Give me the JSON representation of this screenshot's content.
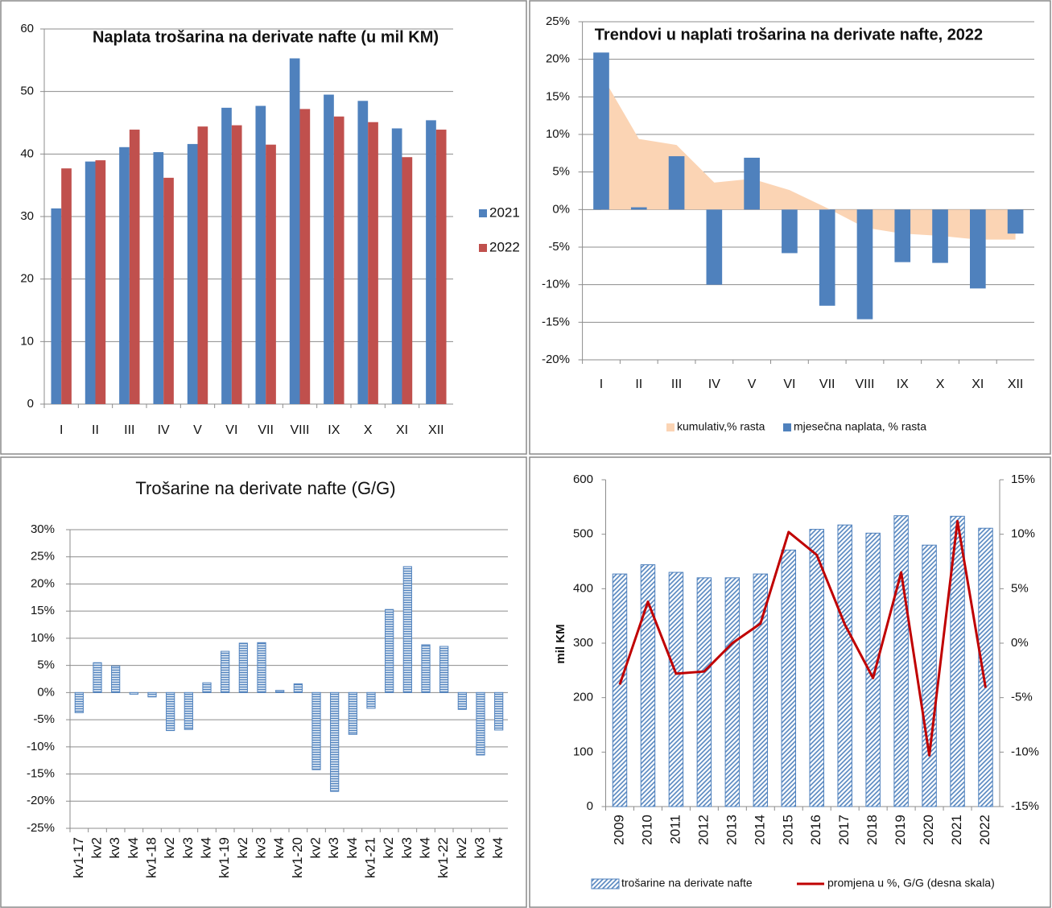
{
  "chart_data": [
    {
      "type": "bar",
      "title": "Naplata trošarina na derivate nafte (u mil KM)",
      "categories": [
        "I",
        "II",
        "III",
        "IV",
        "V",
        "VI",
        "VII",
        "VIII",
        "IX",
        "X",
        "XI",
        "XII"
      ],
      "series": [
        {
          "name": "2021",
          "color": "#4f81bd",
          "values": [
            31.3,
            38.8,
            41.1,
            40.3,
            41.6,
            47.4,
            47.7,
            55.3,
            49.5,
            48.5,
            44.1,
            45.4
          ]
        },
        {
          "name": "2022",
          "color": "#c0504d",
          "values": [
            37.7,
            39.0,
            43.9,
            36.2,
            44.4,
            44.6,
            41.5,
            47.2,
            46.0,
            45.1,
            39.5,
            43.9
          ]
        }
      ],
      "ylim": [
        0,
        60
      ],
      "yticks": [
        0,
        10,
        20,
        30,
        40,
        50,
        60
      ],
      "grid": true,
      "legend": "right"
    },
    {
      "type": "combo",
      "title": "Trendovi u naplati trošarina na derivate nafte, 2022",
      "categories": [
        "I",
        "II",
        "III",
        "IV",
        "V",
        "VI",
        "VII",
        "VIII",
        "IX",
        "X",
        "XI",
        "XII"
      ],
      "series": [
        {
          "name": "kumulativ,% rasta",
          "type": "area",
          "color": "#fbd4b4",
          "values": [
            18.0,
            9.4,
            8.6,
            3.6,
            4.1,
            2.6,
            0.2,
            -2.4,
            -3.2,
            -3.5,
            -4.0,
            -4.0
          ]
        },
        {
          "name": "mjesečna naplata, % rasta",
          "type": "bar",
          "color": "#4f81bd",
          "values": [
            20.9,
            0.3,
            7.1,
            -10.0,
            6.9,
            -5.8,
            -12.8,
            -14.6,
            -7.0,
            -7.1,
            -10.5,
            -3.2
          ]
        }
      ],
      "ylim": [
        -20,
        25
      ],
      "yticks": [
        {
          "value": -20,
          "label": "-20%"
        },
        {
          "value": -15,
          "label": "-15%"
        },
        {
          "value": -10,
          "label": "-10%"
        },
        {
          "value": -5,
          "label": "-5%"
        },
        {
          "value": 0,
          "label": "0%"
        },
        {
          "value": 5,
          "label": "5%"
        },
        {
          "value": 10,
          "label": "10%"
        },
        {
          "value": 15,
          "label": "15%"
        },
        {
          "value": 20,
          "label": "20%"
        },
        {
          "value": 25,
          "label": "25%"
        }
      ],
      "grid": true,
      "legend": "bottom"
    },
    {
      "type": "bar",
      "title": "Trošarine na derivate nafte (G/G)",
      "categories": [
        "kv1-17",
        "kv2",
        "kv3",
        "kv4",
        "kv1-18",
        "kv2",
        "kv3",
        "kv4",
        "kv1-19",
        "kv2",
        "kv3",
        "kv4",
        "kv1-20",
        "kv2",
        "kv3",
        "kv4",
        "kv1-21",
        "kv2",
        "kv3",
        "kv4",
        "kv1-22",
        "kv2",
        "kv3",
        "kv4"
      ],
      "values": [
        -3.7,
        5.5,
        4.9,
        -0.3,
        -0.8,
        -7.0,
        -6.8,
        1.8,
        7.6,
        9.1,
        9.2,
        0.4,
        1.6,
        -14.2,
        -18.2,
        -7.7,
        -2.9,
        15.3,
        23.2,
        8.8,
        8.5,
        -3.1,
        -11.5,
        -6.9
      ],
      "color": "#4f81bd",
      "pattern": "horizontal",
      "ylim": [
        -25,
        30
      ],
      "yticks": [
        {
          "value": -25,
          "label": "-25%"
        },
        {
          "value": -20,
          "label": "-20%"
        },
        {
          "value": -15,
          "label": "-15%"
        },
        {
          "value": -10,
          "label": "-10%"
        },
        {
          "value": -5,
          "label": "-5%"
        },
        {
          "value": 0,
          "label": "0%"
        },
        {
          "value": 5,
          "label": "5%"
        },
        {
          "value": 10,
          "label": "10%"
        },
        {
          "value": 15,
          "label": "15%"
        },
        {
          "value": 20,
          "label": "20%"
        },
        {
          "value": 25,
          "label": "25%"
        },
        {
          "value": 30,
          "label": "30%"
        }
      ],
      "grid": true
    },
    {
      "type": "combo",
      "categories": [
        "2009",
        "2010",
        "2011",
        "2012",
        "2013",
        "2014",
        "2015",
        "2016",
        "2017",
        "2018",
        "2019",
        "2020",
        "2021",
        "2022"
      ],
      "series": [
        {
          "name": "trošarine na derivate nafte",
          "type": "bar",
          "color": "#4f81bd",
          "pattern": "diagonal",
          "values": [
            427,
            444,
            430,
            420,
            420,
            427,
            471,
            509,
            517,
            502,
            534,
            480,
            533,
            511
          ]
        },
        {
          "name": "promjena u %, G/G (desna skala)",
          "type": "line",
          "color": "#c00000",
          "axis": "y2",
          "values": [
            -3.8,
            3.8,
            -2.8,
            -2.6,
            0.0,
            1.8,
            10.2,
            8.1,
            1.7,
            -3.2,
            6.5,
            -10.3,
            11.2,
            -4.1
          ]
        }
      ],
      "ylabel": "mil KM",
      "ylim": [
        0,
        600
      ],
      "yticks": [
        0,
        100,
        200,
        300,
        400,
        500,
        600
      ],
      "y2lim": [
        -15,
        15
      ],
      "y2ticks": [
        {
          "value": -15,
          "label": "-15%"
        },
        {
          "value": -10,
          "label": "-10%"
        },
        {
          "value": -5,
          "label": "-5%"
        },
        {
          "value": 0,
          "label": "0%"
        },
        {
          "value": 5,
          "label": "5%"
        },
        {
          "value": 10,
          "label": "10%"
        },
        {
          "value": 15,
          "label": "15%"
        }
      ],
      "grid": false,
      "legend": "bottom"
    }
  ]
}
